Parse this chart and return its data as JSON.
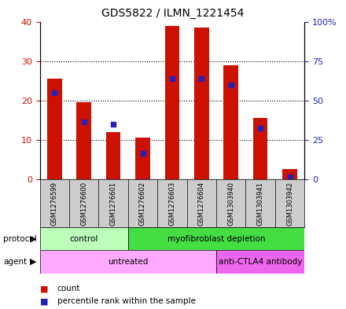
{
  "title": "GDS5822 / ILMN_1221454",
  "samples": [
    "GSM1276599",
    "GSM1276600",
    "GSM1276601",
    "GSM1276602",
    "GSM1276603",
    "GSM1276604",
    "GSM1303940",
    "GSM1303941",
    "GSM1303942"
  ],
  "counts": [
    25.5,
    19.5,
    12.0,
    10.5,
    39.0,
    38.5,
    29.0,
    15.5,
    2.5
  ],
  "percentiles_left_axis": [
    22.0,
    14.5,
    14.0,
    6.5,
    25.5,
    25.5,
    24.0,
    13.0,
    0.5
  ],
  "ylim_left": [
    0,
    40
  ],
  "ylim_right": [
    0,
    100
  ],
  "yticks_left": [
    0,
    10,
    20,
    30,
    40
  ],
  "yticks_right": [
    0,
    25,
    50,
    75,
    100
  ],
  "ytick_labels_right": [
    "0",
    "25",
    "50",
    "75",
    "100%"
  ],
  "bar_color": "#cc1100",
  "dot_color": "#2222bb",
  "protocol_groups": [
    {
      "label": "control",
      "start": 0,
      "end": 3,
      "color": "#bbffbb"
    },
    {
      "label": "myofibroblast depletion",
      "start": 3,
      "end": 9,
      "color": "#44dd44"
    }
  ],
  "agent_groups": [
    {
      "label": "untreated",
      "start": 0,
      "end": 6,
      "color": "#ffaaff"
    },
    {
      "label": "anti-CTLA4 antibody",
      "start": 6,
      "end": 9,
      "color": "#ee66ee"
    }
  ],
  "legend_count_color": "#cc1100",
  "legend_pct_color": "#2222bb",
  "bg_color": "#cccccc",
  "bar_width": 0.5
}
